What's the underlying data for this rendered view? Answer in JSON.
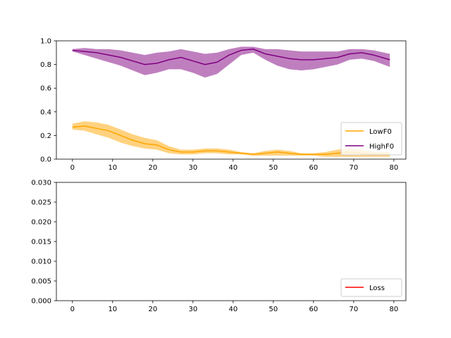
{
  "chart_data": [
    {
      "type": "line",
      "title": "",
      "xlabel": "",
      "ylabel": "",
      "xlim": [
        -4,
        83
      ],
      "ylim": [
        0,
        1.0
      ],
      "xticks": [
        0,
        10,
        20,
        30,
        40,
        50,
        60,
        70,
        80
      ],
      "yticks": [
        0.0,
        0.2,
        0.4,
        0.6,
        0.8,
        1.0
      ],
      "xtick_labels": [
        "0",
        "10",
        "20",
        "30",
        "40",
        "50",
        "60",
        "70",
        "80"
      ],
      "ytick_labels": [
        "0.0",
        "0.2",
        "0.4",
        "0.6",
        "0.8",
        "1.0"
      ],
      "grid": false,
      "legend_position": "lower-right",
      "x": [
        0,
        3,
        6,
        9,
        12,
        15,
        18,
        21,
        24,
        27,
        30,
        33,
        36,
        39,
        42,
        45,
        48,
        51,
        54,
        57,
        60,
        63,
        66,
        69,
        72,
        75,
        79
      ],
      "series": [
        {
          "name": "LowF0",
          "color": "#ffa500",
          "values": [
            0.27,
            0.28,
            0.26,
            0.24,
            0.2,
            0.16,
            0.13,
            0.12,
            0.08,
            0.06,
            0.06,
            0.07,
            0.07,
            0.06,
            0.05,
            0.04,
            0.05,
            0.06,
            0.05,
            0.04,
            0.04,
            0.04,
            0.05,
            0.06,
            0.05,
            0.04,
            0.04
          ],
          "lower": [
            0.25,
            0.24,
            0.21,
            0.18,
            0.14,
            0.11,
            0.09,
            0.08,
            0.05,
            0.04,
            0.04,
            0.05,
            0.05,
            0.04,
            0.04,
            0.03,
            0.03,
            0.03,
            0.03,
            0.03,
            0.03,
            0.02,
            0.02,
            0.02,
            0.02,
            0.02,
            0.02
          ],
          "upper": [
            0.3,
            0.32,
            0.31,
            0.29,
            0.25,
            0.21,
            0.18,
            0.16,
            0.11,
            0.08,
            0.08,
            0.09,
            0.09,
            0.08,
            0.06,
            0.05,
            0.07,
            0.08,
            0.07,
            0.05,
            0.05,
            0.06,
            0.08,
            0.09,
            0.08,
            0.06,
            0.06
          ]
        },
        {
          "name": "HighF0",
          "color": "#800080",
          "values": [
            0.92,
            0.91,
            0.9,
            0.88,
            0.86,
            0.83,
            0.8,
            0.81,
            0.84,
            0.86,
            0.83,
            0.8,
            0.82,
            0.88,
            0.92,
            0.93,
            0.89,
            0.87,
            0.85,
            0.84,
            0.84,
            0.85,
            0.86,
            0.89,
            0.9,
            0.88,
            0.84
          ],
          "lower": [
            0.91,
            0.88,
            0.85,
            0.82,
            0.79,
            0.75,
            0.71,
            0.73,
            0.76,
            0.76,
            0.73,
            0.69,
            0.72,
            0.8,
            0.88,
            0.9,
            0.84,
            0.79,
            0.76,
            0.75,
            0.76,
            0.78,
            0.8,
            0.84,
            0.85,
            0.83,
            0.78
          ],
          "upper": [
            0.93,
            0.94,
            0.93,
            0.93,
            0.92,
            0.9,
            0.88,
            0.9,
            0.91,
            0.93,
            0.91,
            0.89,
            0.9,
            0.93,
            0.95,
            0.95,
            0.93,
            0.93,
            0.92,
            0.91,
            0.91,
            0.91,
            0.91,
            0.93,
            0.93,
            0.92,
            0.89
          ]
        }
      ]
    },
    {
      "type": "line",
      "title": "",
      "xlabel": "",
      "ylabel": "",
      "xlim": [
        -4,
        83
      ],
      "ylim": [
        0,
        0.03
      ],
      "xticks": [
        0,
        10,
        20,
        30,
        40,
        50,
        60,
        70,
        80
      ],
      "yticks": [
        0.0,
        0.005,
        0.01,
        0.015,
        0.02,
        0.025,
        0.03
      ],
      "xtick_labels": [
        "0",
        "10",
        "20",
        "30",
        "40",
        "50",
        "60",
        "70",
        "80"
      ],
      "ytick_labels": [
        "0.000",
        "0.005",
        "0.010",
        "0.015",
        "0.020",
        "0.025",
        "0.030"
      ],
      "grid": false,
      "legend_position": "lower-right",
      "x": [],
      "series": [
        {
          "name": "Loss",
          "color": "#ff0000",
          "values": []
        }
      ]
    }
  ]
}
